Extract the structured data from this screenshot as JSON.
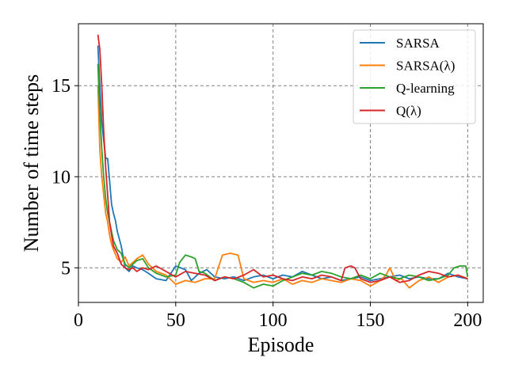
{
  "chart_data": {
    "type": "line",
    "title": "",
    "xlabel": "Episode",
    "ylabel": "Number of time steps",
    "xlim": [
      0,
      208
    ],
    "ylim": [
      3.1,
      18.4
    ],
    "xticks": [
      0,
      50,
      100,
      150,
      200
    ],
    "yticks": [
      5,
      10,
      15
    ],
    "grid": true,
    "grid_style": "dashed",
    "legend_position": "top-right",
    "series": [
      {
        "name": "SARSA",
        "color": "#1f77b4",
        "x": [
          10,
          11,
          12,
          13,
          14,
          15,
          16,
          17,
          18,
          19,
          20,
          22,
          24,
          26,
          28,
          30,
          33,
          36,
          40,
          45,
          50,
          55,
          58,
          62,
          66,
          70,
          75,
          80,
          85,
          90,
          95,
          100,
          105,
          110,
          115,
          120,
          125,
          130,
          135,
          140,
          145,
          150,
          155,
          160,
          165,
          170,
          175,
          180,
          185,
          190,
          195,
          200
        ],
        "y": [
          17.2,
          15.0,
          13.0,
          12.0,
          11.0,
          11.0,
          9.8,
          8.5,
          8.0,
          7.6,
          7.0,
          6.2,
          5.0,
          4.8,
          5.1,
          5.0,
          4.9,
          4.7,
          4.4,
          4.3,
          5.1,
          4.9,
          4.3,
          4.7,
          4.9,
          4.5,
          4.4,
          4.5,
          4.3,
          4.5,
          4.6,
          4.4,
          4.6,
          4.5,
          4.8,
          4.6,
          4.4,
          4.5,
          4.3,
          4.4,
          4.5,
          4.3,
          4.4,
          4.5,
          4.6,
          4.4,
          4.5,
          4.4,
          4.4,
          4.7,
          4.5,
          4.4
        ]
      },
      {
        "name": "SARSA(λ)",
        "color": "#ff7f0e",
        "x": [
          10,
          11,
          12,
          13,
          14,
          15,
          16,
          17,
          18,
          20,
          22,
          24,
          26,
          28,
          30,
          33,
          36,
          40,
          45,
          50,
          55,
          60,
          65,
          70,
          74,
          78,
          82,
          85,
          90,
          95,
          100,
          105,
          110,
          115,
          120,
          125,
          130,
          135,
          140,
          145,
          150,
          155,
          158,
          160,
          163,
          166,
          170,
          175,
          180,
          185,
          190,
          195,
          200
        ],
        "y": [
          15.0,
          11.5,
          10.0,
          9.0,
          8.0,
          7.5,
          6.8,
          6.3,
          6.0,
          5.5,
          5.3,
          5.6,
          5.1,
          5.3,
          5.5,
          5.7,
          5.2,
          4.8,
          4.6,
          4.1,
          4.3,
          4.2,
          4.4,
          4.4,
          5.7,
          5.8,
          5.7,
          4.4,
          4.2,
          4.3,
          4.2,
          4.4,
          4.1,
          4.3,
          4.2,
          4.4,
          4.3,
          4.2,
          4.4,
          4.3,
          4.0,
          4.3,
          4.6,
          5.0,
          4.3,
          4.4,
          3.9,
          4.3,
          4.5,
          4.2,
          4.5,
          4.6,
          4.4
        ]
      },
      {
        "name": "Q-learning",
        "color": "#2ca02c",
        "x": [
          10,
          11,
          12,
          13,
          14,
          15,
          16,
          17,
          18,
          20,
          22,
          24,
          26,
          28,
          30,
          33,
          36,
          40,
          45,
          50,
          52,
          55,
          58,
          60,
          62,
          65,
          70,
          75,
          80,
          85,
          90,
          95,
          100,
          105,
          110,
          115,
          120,
          125,
          130,
          135,
          140,
          145,
          150,
          155,
          160,
          165,
          170,
          175,
          180,
          185,
          190,
          193,
          196,
          199,
          200
        ],
        "y": [
          16.2,
          13.5,
          11.5,
          10.0,
          8.8,
          8.0,
          7.5,
          7.0,
          6.5,
          6.0,
          5.8,
          5.2,
          5.0,
          5.2,
          5.4,
          5.5,
          5.0,
          4.7,
          4.5,
          4.6,
          5.3,
          5.7,
          5.6,
          5.5,
          4.8,
          4.7,
          4.3,
          4.5,
          4.4,
          4.2,
          3.9,
          4.1,
          4.0,
          4.3,
          4.5,
          4.7,
          4.6,
          4.8,
          4.7,
          4.5,
          4.4,
          4.6,
          4.4,
          4.7,
          4.5,
          4.4,
          4.6,
          4.5,
          4.3,
          4.4,
          4.6,
          5.0,
          5.1,
          5.1,
          4.5
        ]
      },
      {
        "name": "Q(λ)",
        "color": "#d62728",
        "x": [
          10,
          11,
          12,
          13,
          14,
          15,
          16,
          17,
          18,
          20,
          22,
          24,
          26,
          28,
          30,
          33,
          36,
          40,
          45,
          50,
          55,
          60,
          65,
          70,
          75,
          80,
          85,
          90,
          95,
          100,
          105,
          110,
          115,
          120,
          125,
          130,
          135,
          137,
          140,
          142,
          145,
          150,
          155,
          160,
          165,
          170,
          175,
          180,
          185,
          190,
          195,
          200
        ],
        "y": [
          17.8,
          17.0,
          15.0,
          12.5,
          10.5,
          9.0,
          7.5,
          6.8,
          6.2,
          5.8,
          5.2,
          5.0,
          4.9,
          5.0,
          4.8,
          5.0,
          4.9,
          5.1,
          4.8,
          4.5,
          4.8,
          4.7,
          4.6,
          4.3,
          4.5,
          4.4,
          4.6,
          4.9,
          4.5,
          4.6,
          4.4,
          4.3,
          4.5,
          4.4,
          4.6,
          4.5,
          4.3,
          5.0,
          5.1,
          5.0,
          4.4,
          4.2,
          4.3,
          4.5,
          4.2,
          4.3,
          4.6,
          4.8,
          4.7,
          4.5,
          4.6,
          4.4
        ]
      }
    ]
  }
}
